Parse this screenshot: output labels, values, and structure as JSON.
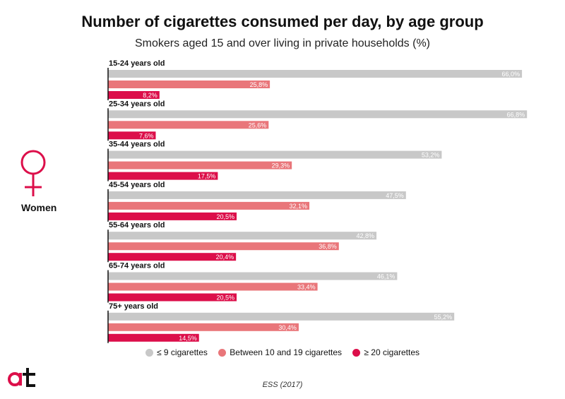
{
  "title": "Number of cigarettes consumed per day, by age group",
  "subtitle": "Smokers aged 15 and over living in private households (%)",
  "side_label": "Women",
  "source": "ESS (2017)",
  "legend": [
    {
      "label": "≤ 9 cigarettes",
      "color": "#c8c8c8"
    },
    {
      "label": "Between 10 and 19 cigarettes",
      "color": "#e9767a"
    },
    {
      "label": "≥ 20 cigarettes",
      "color": "#dc0f4a"
    }
  ],
  "icons": {
    "gender": "venus-icon",
    "logo": "at-logo-icon"
  },
  "chart_data": {
    "type": "bar",
    "orientation": "horizontal",
    "title": "Number of cigarettes consumed per day, by age group",
    "subtitle": "Smokers aged 15 and over living in private households (%)",
    "categories": [
      "15-24 years old",
      "25-34 years old",
      "35-44 years old",
      "45-54 years old",
      "55-64 years old",
      "65-74 years old",
      "75+ years old"
    ],
    "series": [
      {
        "name": "≤ 9 cigarettes",
        "color": "#c8c8c8",
        "values": [
          66.0,
          66.8,
          53.2,
          47.5,
          42.8,
          46.1,
          55.2
        ],
        "labels": [
          "66,0%",
          "66,8%",
          "53,2%",
          "47,5%",
          "42,8%",
          "46,1%",
          "55,2%"
        ]
      },
      {
        "name": "Between 10 and 19 cigarettes",
        "color": "#e9767a",
        "values": [
          25.8,
          25.6,
          29.3,
          32.1,
          36.8,
          33.4,
          30.4
        ],
        "labels": [
          "25,8%",
          "25,6%",
          "29,3%",
          "32,1%",
          "36,8%",
          "33,4%",
          "30,4%"
        ]
      },
      {
        "name": "≥ 20 cigarettes",
        "color": "#dc0f4a",
        "values": [
          8.2,
          7.6,
          17.5,
          20.5,
          20.4,
          20.5,
          14.5
        ],
        "labels": [
          "8,2%",
          "7,6%",
          "17,5%",
          "20,5%",
          "20,4%",
          "20,5%",
          "14,5%"
        ]
      }
    ],
    "xlim": [
      0,
      100
    ],
    "grid": false,
    "legend_position": "bottom"
  }
}
